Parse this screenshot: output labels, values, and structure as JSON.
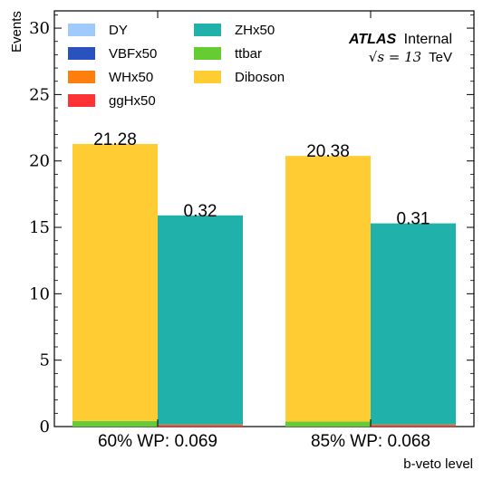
{
  "chart_data": {
    "type": "bar",
    "stacked": true,
    "xlabel": "b-veto level",
    "ylabel": "Events",
    "ylim": [
      0,
      31.3
    ],
    "yticks": [
      0,
      5,
      10,
      15,
      20,
      25,
      30
    ],
    "grid": false,
    "legend_position": "top-left",
    "annotation": {
      "experiment": "ATLAS",
      "status": "Internal",
      "energy_prefix": "√s = 13",
      "energy_unit": "TeV"
    },
    "categories": [
      "60% WP: 0.069",
      "85% WP: 0.068"
    ],
    "bar_groups": [
      {
        "name": "background",
        "label_values": [
          "21.28",
          "20.38"
        ],
        "series": [
          {
            "name": "DY",
            "color": "#9ecbfb",
            "values": [
              0.0,
              0.0
            ]
          },
          {
            "name": "ttbar",
            "color": "#66cc33",
            "values": [
              0.42,
              0.38
            ]
          },
          {
            "name": "Diboson",
            "color": "#ffcc33",
            "values": [
              20.86,
              20.0
            ]
          }
        ]
      },
      {
        "name": "signal",
        "label_values": [
          "0.32",
          "0.31"
        ],
        "series": [
          {
            "name": "ggHx50",
            "color": "#ff3333",
            "values": [
              0.1,
              0.1
            ]
          },
          {
            "name": "WHx50",
            "color": "#ff7f0e",
            "values": [
              0.05,
              0.05
            ]
          },
          {
            "name": "VBFx50",
            "color": "#2a52be",
            "values": [
              0.0,
              0.0
            ]
          },
          {
            "name": "ZHx50",
            "color": "#20b2aa",
            "values": [
              15.75,
              15.15
            ]
          }
        ]
      }
    ],
    "legend": [
      {
        "name": "DY",
        "color": "#9ecbfb"
      },
      {
        "name": "VBFx50",
        "color": "#2a52be"
      },
      {
        "name": "WHx50",
        "color": "#ff7f0e"
      },
      {
        "name": "ggHx50",
        "color": "#ff3333"
      },
      {
        "name": "ZHx50",
        "color": "#20b2aa"
      },
      {
        "name": "ttbar",
        "color": "#66cc33"
      },
      {
        "name": "Diboson",
        "color": "#ffcc33"
      }
    ]
  }
}
